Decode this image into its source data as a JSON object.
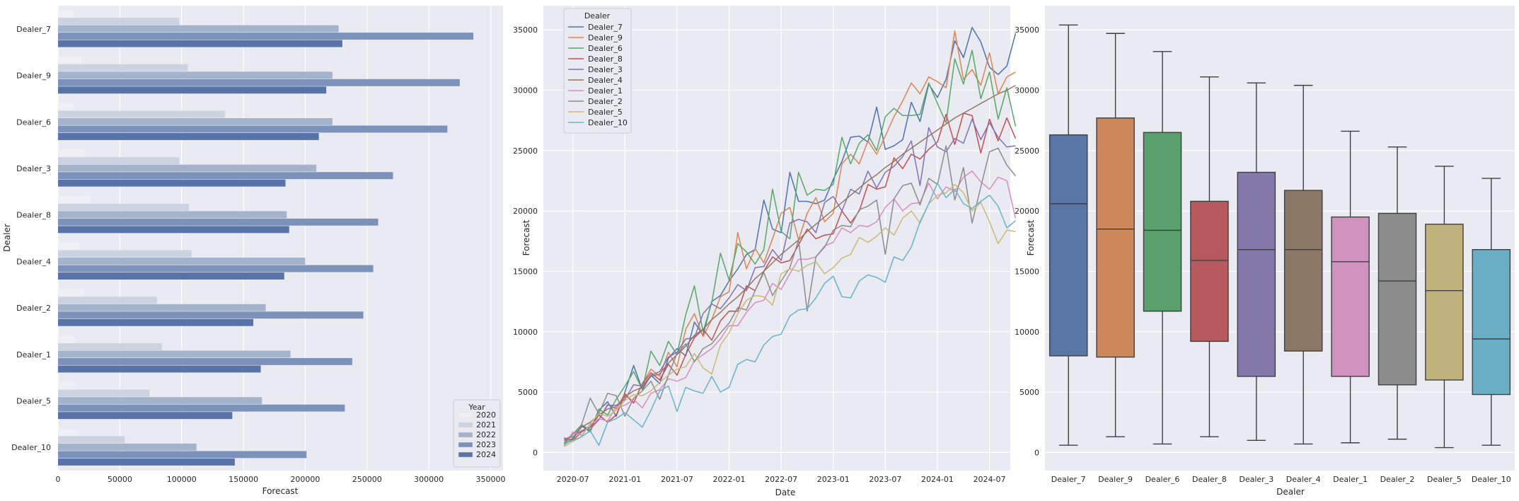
{
  "chart_data": [
    {
      "type": "bar",
      "orientation": "horizontal",
      "xlabel": "Forecast",
      "ylabel": "Dealer",
      "xlim": [
        0,
        360000
      ],
      "xticks": [
        0,
        50000,
        100000,
        150000,
        200000,
        250000,
        300000,
        350000
      ],
      "categories": [
        "Dealer_7",
        "Dealer_9",
        "Dealer_6",
        "Dealer_3",
        "Dealer_8",
        "Dealer_4",
        "Dealer_2",
        "Dealer_1",
        "Dealer_5",
        "Dealer_10"
      ],
      "legend_title": "Year",
      "legend_position": "lower right",
      "grid": true,
      "series": [
        {
          "name": "2020",
          "color": "#eef0f5",
          "values": [
            13000,
            19000,
            13000,
            22000,
            26000,
            17000,
            21000,
            14000,
            15000,
            17000
          ]
        },
        {
          "name": "2021",
          "color": "#cbd3e1",
          "values": [
            98000,
            105000,
            135000,
            98000,
            106000,
            108000,
            80000,
            84000,
            74000,
            54000
          ]
        },
        {
          "name": "2022",
          "color": "#a4b3cc",
          "values": [
            227000,
            222000,
            222000,
            209000,
            185000,
            200000,
            168000,
            188000,
            165000,
            112000
          ]
        },
        {
          "name": "2023",
          "color": "#7d92ba",
          "values": [
            336000,
            325000,
            315000,
            271000,
            259000,
            255000,
            247000,
            238000,
            232000,
            201000
          ]
        },
        {
          "name": "2024",
          "color": "#5773a8",
          "values": [
            230000,
            217000,
            211000,
            184000,
            187000,
            183000,
            158000,
            164000,
            141000,
            143000
          ]
        }
      ]
    },
    {
      "type": "line",
      "xlabel": "Date",
      "ylabel": "Forecast",
      "ylim": [
        -1500,
        37000
      ],
      "yticks": [
        0,
        5000,
        10000,
        15000,
        20000,
        25000,
        30000,
        35000
      ],
      "xticks": [
        "2020-07",
        "2021-01",
        "2021-07",
        "2022-01",
        "2022-07",
        "2023-01",
        "2023-07",
        "2024-01",
        "2024-07"
      ],
      "x_start": "2020-06",
      "x_end": "2024-07",
      "legend_title": "Dealer",
      "legend_position": "upper left",
      "grid": true,
      "series": [
        {
          "name": "Dealer_7",
          "color": "#4c72b0",
          "values": [
            800,
            1500,
            2200,
            1700,
            3500,
            4200,
            3000,
            5000,
            7200,
            5200,
            6400,
            5700,
            7800,
            8600,
            8000,
            10800,
            9700,
            12500,
            13000,
            14200,
            15200,
            16400,
            16800,
            20900,
            18500,
            18200,
            23200,
            20800,
            20800,
            20600,
            20900,
            22600,
            24100,
            26100,
            26200,
            25700,
            28600,
            25100,
            25400,
            25900,
            29000,
            27400,
            30500,
            29400,
            30900,
            34100,
            32700,
            35200,
            34000,
            31900,
            31300,
            32000,
            34700
          ]
        },
        {
          "name": "Dealer_9",
          "color": "#dd8452",
          "values": [
            1000,
            1500,
            2300,
            1900,
            2700,
            4000,
            3600,
            4900,
            4100,
            5700,
            6900,
            6300,
            8300,
            7100,
            10200,
            11500,
            9600,
            11000,
            12900,
            13300,
            18200,
            15200,
            16900,
            15700,
            17700,
            19800,
            20300,
            17600,
            19800,
            21100,
            19100,
            19800,
            23900,
            24700,
            23900,
            25800,
            24700,
            26200,
            27800,
            29100,
            30600,
            29700,
            31100,
            30700,
            30200,
            34900,
            30900,
            31700,
            30400,
            33100,
            29700,
            31100,
            31500
          ]
        },
        {
          "name": "Dealer_6",
          "color": "#55a868",
          "values": [
            600,
            1200,
            2300,
            1800,
            3600,
            3100,
            4400,
            5500,
            6700,
            5200,
            8400,
            7200,
            9200,
            8100,
            11400,
            13800,
            10000,
            12400,
            16500,
            14300,
            17300,
            16600,
            15600,
            16800,
            21800,
            18300,
            17700,
            23200,
            21300,
            21800,
            21700,
            22200,
            26100,
            23900,
            25600,
            26300,
            25000,
            27800,
            28500,
            27900,
            27900,
            28000,
            30600,
            28900,
            27300,
            32600,
            30500,
            33300,
            29300,
            31500,
            27600,
            30200,
            27000
          ]
        },
        {
          "name": "Dealer_8",
          "color": "#c44e52",
          "values": [
            1200,
            1000,
            1700,
            2100,
            3100,
            2500,
            3100,
            4800,
            4100,
            5700,
            6600,
            6000,
            7300,
            6400,
            8100,
            9500,
            10200,
            9300,
            10900,
            11700,
            11700,
            13800,
            13400,
            15000,
            16200,
            15700,
            15900,
            17200,
            18500,
            17700,
            18000,
            18100,
            20000,
            19000,
            20000,
            22200,
            21800,
            22000,
            24400,
            23500,
            24700,
            24300,
            25100,
            25700,
            28000,
            25500,
            28100,
            27900,
            24800,
            27600,
            25800,
            27700,
            26000
          ]
        },
        {
          "name": "Dealer_3",
          "color": "#8172b3",
          "values": [
            1100,
            1300,
            1800,
            2100,
            2700,
            3900,
            3900,
            4400,
            5600,
            5500,
            6400,
            6700,
            7900,
            8300,
            9400,
            9500,
            11500,
            12300,
            11900,
            12800,
            13900,
            13400,
            15300,
            15400,
            16800,
            15900,
            19000,
            19300,
            19100,
            18200,
            20700,
            21200,
            20000,
            21800,
            21400,
            23300,
            21900,
            23200,
            23700,
            24500,
            25800,
            22100,
            26900,
            25300,
            24900,
            26000,
            25600,
            27600,
            25900,
            27300,
            26100,
            25300,
            25400
          ]
        },
        {
          "name": "Dealer_4",
          "color": "#937860",
          "values": [
            1000,
            1100,
            2100,
            2500,
            3100,
            3600,
            3800,
            4600,
            5100,
            5400,
            6300,
            6500,
            7400,
            8100,
            8800,
            9700,
            10200,
            11000,
            11600,
            12300,
            12900,
            13600,
            14400,
            15000,
            15700,
            16400,
            17000,
            17600,
            18300,
            18900,
            19500,
            20100,
            20700,
            21300,
            21900,
            22500,
            23000,
            23600,
            24100,
            24700,
            25200,
            25700,
            26200,
            26700,
            27200,
            27700,
            28100,
            28500,
            28900,
            29300,
            29700,
            30000,
            30400
          ]
        },
        {
          "name": "Dealer_1",
          "color": "#da8bc3",
          "values": [
            500,
            1700,
            1400,
            2300,
            2800,
            2600,
            3800,
            3900,
            4400,
            3700,
            4900,
            5200,
            6100,
            5900,
            6200,
            7600,
            8100,
            8600,
            9400,
            10500,
            10500,
            11600,
            12400,
            12600,
            14000,
            13500,
            14800,
            16000,
            16000,
            16200,
            17100,
            17400,
            18600,
            18200,
            18800,
            18700,
            19100,
            20300,
            21000,
            20000,
            20600,
            20700,
            22300,
            21000,
            22000,
            21600,
            22800,
            23300,
            22400,
            21800,
            22800,
            22500,
            19400
          ]
        },
        {
          "name": "Dealer_2",
          "color": "#8c8c8c",
          "values": [
            700,
            1500,
            2300,
            4500,
            3200,
            4900,
            4700,
            3000,
            4500,
            5100,
            5900,
            4400,
            6400,
            8200,
            9000,
            7500,
            8600,
            9000,
            9900,
            10700,
            12000,
            11800,
            13400,
            14900,
            13000,
            14200,
            15300,
            17600,
            11700,
            16200,
            17000,
            18400,
            18800,
            18700,
            20100,
            20400,
            20900,
            16400,
            21000,
            22100,
            22300,
            20500,
            22700,
            22200,
            25400,
            20900,
            23600,
            19000,
            22000,
            24900,
            25200,
            23800,
            22900
          ]
        },
        {
          "name": "Dealer_5",
          "color": "#ccb974",
          "values": [
            500,
            900,
            1300,
            2400,
            3200,
            3000,
            3500,
            4300,
            4800,
            4700,
            5100,
            5800,
            6400,
            6900,
            7100,
            8200,
            7000,
            6500,
            8900,
            9900,
            11500,
            12600,
            13000,
            12900,
            12200,
            14800,
            15200,
            15000,
            15500,
            15800,
            14800,
            15300,
            16100,
            16400,
            17800,
            17400,
            17900,
            18600,
            18000,
            19400,
            20000,
            19000,
            20600,
            21300,
            21500,
            22200,
            21500,
            20000,
            20700,
            19100,
            17300,
            18400,
            18300
          ]
        },
        {
          "name": "Dealer_10",
          "color": "#64b5cd",
          "values": [
            700,
            1000,
            1300,
            1800,
            600,
            2500,
            2800,
            3300,
            2700,
            2100,
            3500,
            5100,
            5500,
            3400,
            5400,
            5100,
            4900,
            6300,
            5000,
            5400,
            7300,
            7700,
            7500,
            8900,
            9600,
            9800,
            11300,
            11800,
            11900,
            12800,
            14000,
            14600,
            12900,
            12800,
            14200,
            14700,
            14500,
            14100,
            16200,
            15900,
            17000,
            19100,
            20600,
            22300,
            21100,
            21800,
            20600,
            20200,
            20800,
            21300,
            20400,
            18600,
            19200
          ]
        }
      ]
    },
    {
      "type": "box",
      "xlabel": "Dealer",
      "ylabel": "Forecast",
      "ylim": [
        -1500,
        37000
      ],
      "yticks": [
        0,
        5000,
        10000,
        15000,
        20000,
        25000,
        30000,
        35000
      ],
      "categories": [
        "Dealer_7",
        "Dealer_9",
        "Dealer_6",
        "Dealer_8",
        "Dealer_3",
        "Dealer_4",
        "Dealer_1",
        "Dealer_2",
        "Dealer_5",
        "Dealer_10"
      ],
      "grid": true,
      "boxes": [
        {
          "name": "Dealer_7",
          "color": "#5875a6",
          "min": 600,
          "q1": 8000,
          "median": 20600,
          "q3": 26300,
          "max": 35400
        },
        {
          "name": "Dealer_9",
          "color": "#cf875c",
          "min": 1300,
          "q1": 7900,
          "median": 18500,
          "q3": 27700,
          "max": 34700
        },
        {
          "name": "Dealer_6",
          "color": "#5a9f6c",
          "min": 700,
          "q1": 11700,
          "median": 18400,
          "q3": 26500,
          "max": 33200
        },
        {
          "name": "Dealer_8",
          "color": "#b65a5f",
          "min": 1300,
          "q1": 9200,
          "median": 15900,
          "q3": 20800,
          "max": 31100
        },
        {
          "name": "Dealer_3",
          "color": "#8578ab",
          "min": 1000,
          "q1": 6300,
          "median": 16800,
          "q3": 23200,
          "max": 30600
        },
        {
          "name": "Dealer_4",
          "color": "#8b7866",
          "min": 700,
          "q1": 8400,
          "median": 16800,
          "q3": 21700,
          "max": 30400
        },
        {
          "name": "Dealer_1",
          "color": "#d093bf",
          "min": 800,
          "q1": 6300,
          "median": 15800,
          "q3": 19500,
          "max": 26600
        },
        {
          "name": "Dealer_2",
          "color": "#8c8c8c",
          "min": 1100,
          "q1": 5600,
          "median": 14200,
          "q3": 19800,
          "max": 25300
        },
        {
          "name": "Dealer_5",
          "color": "#c0b27c",
          "min": 400,
          "q1": 6000,
          "median": 13400,
          "q3": 18900,
          "max": 23700
        },
        {
          "name": "Dealer_10",
          "color": "#6aaec5",
          "min": 600,
          "q1": 4800,
          "median": 9400,
          "q3": 16800,
          "max": 22700
        }
      ]
    }
  ]
}
